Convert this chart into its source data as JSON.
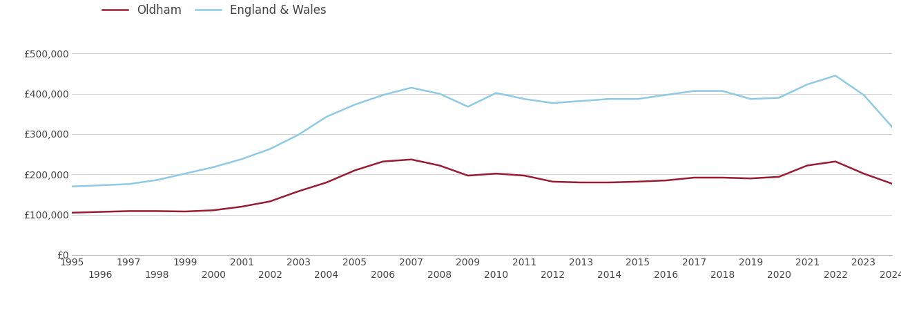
{
  "years": [
    1995,
    1996,
    1997,
    1998,
    1999,
    2000,
    2001,
    2002,
    2003,
    2004,
    2005,
    2006,
    2007,
    2008,
    2009,
    2010,
    2011,
    2012,
    2013,
    2014,
    2015,
    2016,
    2017,
    2018,
    2019,
    2020,
    2021,
    2022,
    2023,
    2024
  ],
  "oldham": [
    105000,
    107000,
    109000,
    109000,
    108000,
    111000,
    120000,
    133000,
    158000,
    180000,
    210000,
    232000,
    237000,
    222000,
    197000,
    202000,
    197000,
    182000,
    180000,
    180000,
    182000,
    185000,
    192000,
    192000,
    190000,
    194000,
    222000,
    232000,
    202000,
    177000
  ],
  "england_wales": [
    170000,
    173000,
    176000,
    186000,
    202000,
    218000,
    238000,
    263000,
    298000,
    343000,
    373000,
    397000,
    415000,
    400000,
    368000,
    402000,
    387000,
    377000,
    382000,
    387000,
    387000,
    397000,
    407000,
    407000,
    387000,
    390000,
    423000,
    445000,
    397000,
    318000
  ],
  "oldham_color": "#9b1b30",
  "ew_color": "#8ecae6",
  "line_width": 1.8,
  "background_color": "#ffffff",
  "grid_color": "#d3d3d3",
  "ylim": [
    0,
    540000
  ],
  "yticks": [
    0,
    100000,
    200000,
    300000,
    400000,
    500000
  ],
  "ytick_labels": [
    "£0",
    "£100,000",
    "£200,000",
    "£300,000",
    "£400,000",
    "£500,000"
  ],
  "legend_oldham": "Oldham",
  "legend_ew": "England & Wales",
  "tick_fontsize": 11,
  "legend_fontsize": 12
}
